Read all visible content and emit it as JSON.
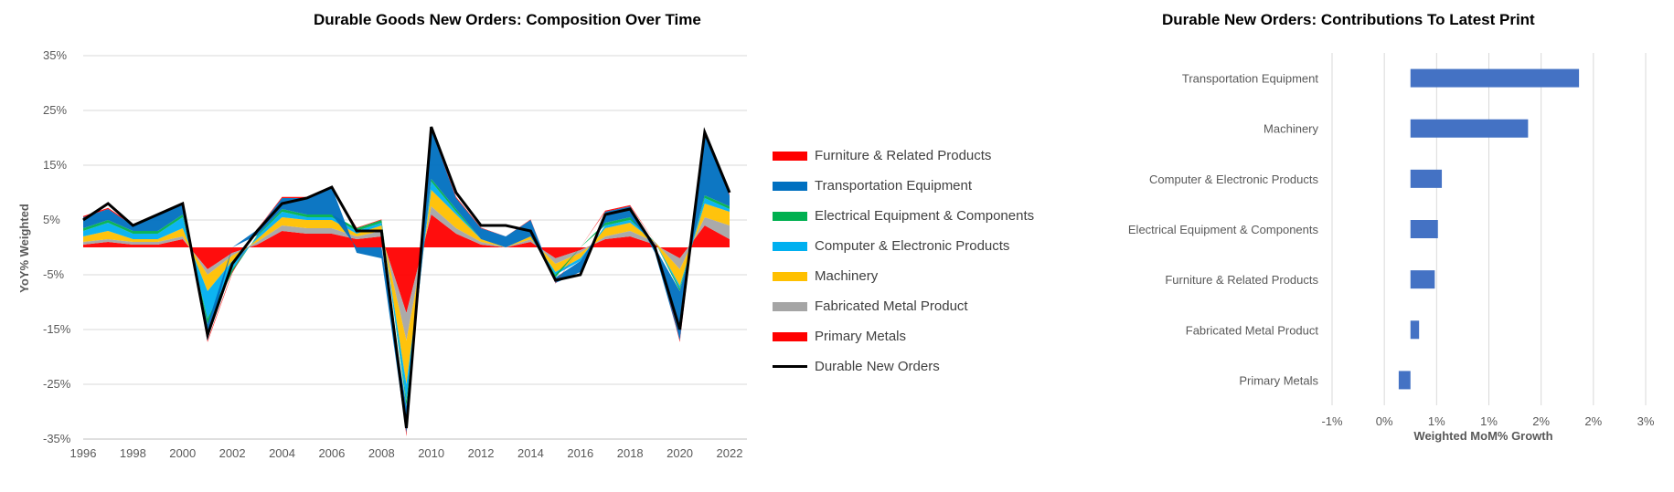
{
  "chart_data": [
    {
      "type": "area",
      "title": "Durable Goods New Orders: Composition Over Time",
      "ylabel": "YoY% Weighted",
      "xlabel": "",
      "ylim": [
        -35,
        35
      ],
      "y_ticks": [
        "35%",
        "25%",
        "15%",
        "5%",
        "-5%",
        "-15%",
        "-25%",
        "-35%"
      ],
      "x_ticks": [
        "1996",
        "1998",
        "2000",
        "2002",
        "2004",
        "2006",
        "2008",
        "2010",
        "2012",
        "2014",
        "2016",
        "2018",
        "2020",
        "2022"
      ],
      "legend": [
        "Furniture & Related Products",
        "Transportation Equipment",
        "Electrical Equipment & Components",
        "Computer & Electronic Products",
        "Machinery",
        "Fabricated Metal Product",
        "Primary Metals",
        "Durable New Orders"
      ],
      "legend_colors": [
        "#ff0000",
        "#0070c0",
        "#00b050",
        "#00b0f0",
        "#ffc000",
        "#a5a5a5",
        "#ff0000",
        "#000000"
      ],
      "legend_placement": "right",
      "x": [
        1996,
        1997,
        1998,
        1999,
        2000,
        2001,
        2002,
        2003,
        2004,
        2005,
        2006,
        2007,
        2008,
        2009,
        2010,
        2011,
        2012,
        2013,
        2014,
        2015,
        2016,
        2017,
        2018,
        2019,
        2020,
        2021,
        2022
      ],
      "series": [
        {
          "name": "Primary Metals",
          "values": [
            0.5,
            1,
            0.5,
            0.5,
            1.5,
            -4,
            -1,
            0.5,
            3,
            2.5,
            2.5,
            1.5,
            2,
            -12,
            6,
            2.5,
            0.5,
            0,
            1,
            -2,
            -0.5,
            1.5,
            2,
            0.5,
            -2,
            4,
            1.5
          ]
        },
        {
          "name": "Fabricated Metal Product",
          "values": [
            0.5,
            0.5,
            0.5,
            0.5,
            0.5,
            -1,
            -0.5,
            0.5,
            1,
            1,
            1,
            0.5,
            1,
            -5,
            1.5,
            1,
            0.5,
            0,
            0.5,
            -1,
            -0.5,
            0.5,
            1,
            0.5,
            -2,
            1.5,
            2.5
          ]
        },
        {
          "name": "Machinery",
          "values": [
            1,
            1.5,
            0.5,
            0.5,
            1.5,
            -3,
            -1,
            0.5,
            1.5,
            1.5,
            1.5,
            0.5,
            1,
            -8,
            3,
            2.5,
            0.5,
            0,
            0.5,
            -1.5,
            -1,
            1.5,
            1.5,
            0,
            -3,
            2.5,
            2.5
          ]
        },
        {
          "name": "Computer & Electronic Products",
          "values": [
            1,
            1.5,
            1,
            1,
            2,
            -5,
            -1.5,
            0.5,
            1,
            0.5,
            0.5,
            0.5,
            0.5,
            -3,
            1.5,
            0.5,
            0,
            0,
            0,
            -0.5,
            -0.5,
            0.5,
            0.5,
            0,
            -0.5,
            1,
            0.5
          ]
        },
        {
          "name": "Electrical Equipment & Components",
          "values": [
            0.5,
            0.5,
            0.5,
            0.5,
            0.5,
            -1,
            -0.5,
            0.2,
            0.5,
            0.5,
            0.5,
            0.5,
            0.5,
            -1,
            0.5,
            0.5,
            0,
            0,
            0,
            -0.5,
            0,
            0.5,
            0.5,
            0,
            -0.5,
            0.5,
            0.5
          ]
        },
        {
          "name": "Transportation Equipment",
          "values": [
            2,
            2,
            1,
            3,
            2,
            -3,
            0,
            1,
            2,
            3,
            5,
            -1,
            -2,
            -5,
            9,
            2,
            2,
            2,
            3,
            -1,
            -2,
            2,
            2,
            -1,
            -9,
            11,
            2
          ]
        },
        {
          "name": "Furniture & Related Products",
          "values": [
            0.2,
            0.2,
            0.2,
            0.2,
            0.2,
            -0.3,
            -0.2,
            0.1,
            0.2,
            0.2,
            0.2,
            0.1,
            0.1,
            -0.5,
            0.2,
            0.2,
            0.1,
            0,
            0.1,
            -0.1,
            0,
            0.2,
            0.2,
            0,
            -0.3,
            0.5,
            0.2
          ]
        },
        {
          "name": "Durable New Orders",
          "values": [
            5,
            8,
            4,
            6,
            8,
            -16,
            -3,
            3,
            8,
            9,
            11,
            3,
            3,
            -33,
            22,
            10,
            4,
            4,
            3,
            -6,
            -5,
            6,
            7,
            0,
            -15,
            21,
            10
          ]
        }
      ]
    },
    {
      "type": "bar",
      "orientation": "horizontal",
      "title": "Durable New Orders: Contributions To Latest Print",
      "xlabel": "Weighted MoM% Growth",
      "ylabel": "",
      "xlim": [
        -1,
        3
      ],
      "x_ticks": [
        "-1%",
        "0%",
        "1%",
        "1%",
        "2%",
        "2%",
        "3%"
      ],
      "categories": [
        "Transportation Equipment",
        "Machinery",
        "Computer & Electronic Products",
        "Electrical Equipment & Components",
        "Furniture & Related Products",
        "Fabricated Metal Product",
        "Primary Metals"
      ],
      "values": [
        2.15,
        1.5,
        0.4,
        0.35,
        0.31,
        0.11,
        -0.15
      ],
      "bar_color": "#4472c4",
      "grid": true
    }
  ]
}
